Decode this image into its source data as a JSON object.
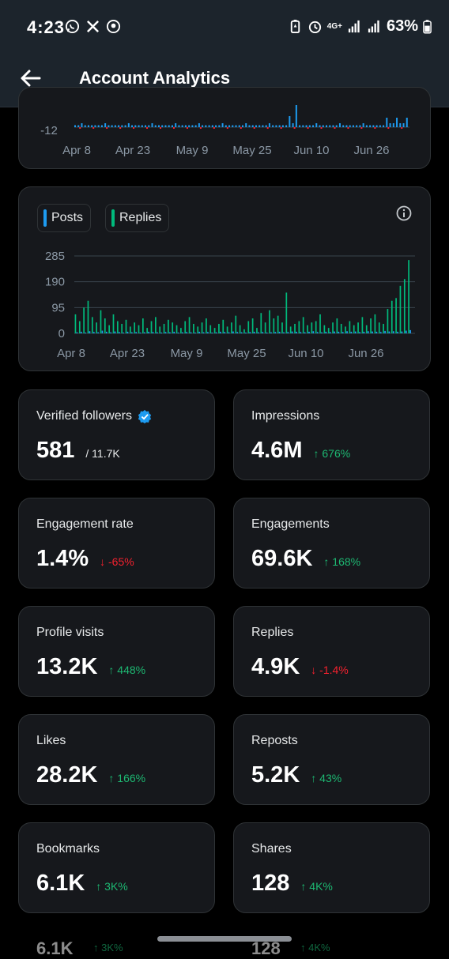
{
  "status": {
    "time": "4:23",
    "battery_text": "63%",
    "network_label": "4G+",
    "left_icons": [
      "whatsapp-icon",
      "x-icon",
      "maps-icon"
    ],
    "right_icons": [
      "battery-saver-icon",
      "alarm-icon",
      "signal-icon",
      "battery-icon"
    ]
  },
  "header": {
    "title": "Account Analytics",
    "back_icon": "arrow-left-icon"
  },
  "top_chart": {
    "y_tick_visible": "-12",
    "x_ticks": [
      "Apr 8",
      "Apr 23",
      "May 9",
      "May 25",
      "Jun 10",
      "Jun 26"
    ],
    "colors": {
      "positive": "#1d9bf0",
      "negative": "#f4212e"
    }
  },
  "chart_data": {
    "type": "bar",
    "legend": [
      {
        "name": "Posts",
        "color": "#1d9bf0"
      },
      {
        "name": "Replies",
        "color": "#00ba7c"
      }
    ],
    "x_ticks": [
      "Apr 8",
      "Apr 23",
      "May 9",
      "May 25",
      "Jun 10",
      "Jun 26"
    ],
    "y_ticks": [
      "285",
      "190",
      "95",
      "0"
    ],
    "ylim": [
      0,
      285
    ],
    "grid": true,
    "posts_values": [
      4,
      6,
      3,
      8,
      5,
      4,
      10,
      6,
      4,
      7,
      5,
      3,
      6,
      4,
      5,
      3,
      4,
      6,
      5,
      4,
      3,
      5,
      4,
      6,
      3,
      4,
      5,
      4,
      3,
      6,
      4,
      5,
      3,
      4,
      6,
      5,
      4,
      7,
      5,
      4,
      3,
      5,
      6,
      4,
      5,
      3,
      4,
      5,
      6,
      4,
      5,
      7,
      6,
      5,
      4,
      6,
      8,
      5,
      4,
      6,
      5,
      7,
      6,
      5,
      8,
      6,
      7,
      5,
      6,
      8,
      7,
      6,
      5,
      9,
      7,
      8,
      6,
      7,
      10,
      12
    ],
    "replies_values": [
      70,
      45,
      95,
      120,
      60,
      40,
      85,
      55,
      30,
      70,
      45,
      35,
      50,
      25,
      40,
      30,
      55,
      20,
      45,
      60,
      25,
      35,
      50,
      40,
      30,
      20,
      45,
      60,
      35,
      25,
      40,
      55,
      30,
      20,
      35,
      50,
      25,
      40,
      65,
      30,
      15,
      45,
      55,
      20,
      75,
      40,
      85,
      55,
      65,
      40,
      150,
      25,
      35,
      45,
      60,
      30,
      40,
      45,
      70,
      30,
      20,
      40,
      55,
      35,
      25,
      45,
      30,
      40,
      60,
      30,
      55,
      70,
      40,
      35,
      90,
      120,
      130,
      175,
      200,
      270
    ]
  },
  "stats": [
    {
      "label": "Verified followers",
      "value": "581",
      "sub": "/ 11.7K",
      "change": "",
      "direction": "none",
      "verified": true
    },
    {
      "label": "Impressions",
      "value": "4.6M",
      "sub": "",
      "change": "↑ 676%",
      "direction": "up"
    },
    {
      "label": "Engagement rate",
      "value": "1.4%",
      "sub": "",
      "change": "↓ -65%",
      "direction": "down"
    },
    {
      "label": "Engagements",
      "value": "69.6K",
      "sub": "",
      "change": "↑ 168%",
      "direction": "up"
    },
    {
      "label": "Profile visits",
      "value": "13.2K",
      "sub": "",
      "change": "↑ 448%",
      "direction": "up"
    },
    {
      "label": "Replies",
      "value": "4.9K",
      "sub": "",
      "change": "↓ -1.4%",
      "direction": "down"
    },
    {
      "label": "Likes",
      "value": "28.2K",
      "sub": "",
      "change": "↑ 166%",
      "direction": "up"
    },
    {
      "label": "Reposts",
      "value": "5.2K",
      "sub": "",
      "change": "↑ 43%",
      "direction": "up"
    },
    {
      "label": "Bookmarks",
      "value": "6.1K",
      "sub": "",
      "change": "↑ 3K%",
      "direction": "up"
    },
    {
      "label": "Shares",
      "value": "128",
      "sub": "",
      "change": "↑ 4K%",
      "direction": "up"
    }
  ],
  "partial_next_row": {
    "left_value": "6.1K",
    "left_change": "↑ 3K%",
    "right_value": "128",
    "right_change": "↑ 4K%"
  }
}
